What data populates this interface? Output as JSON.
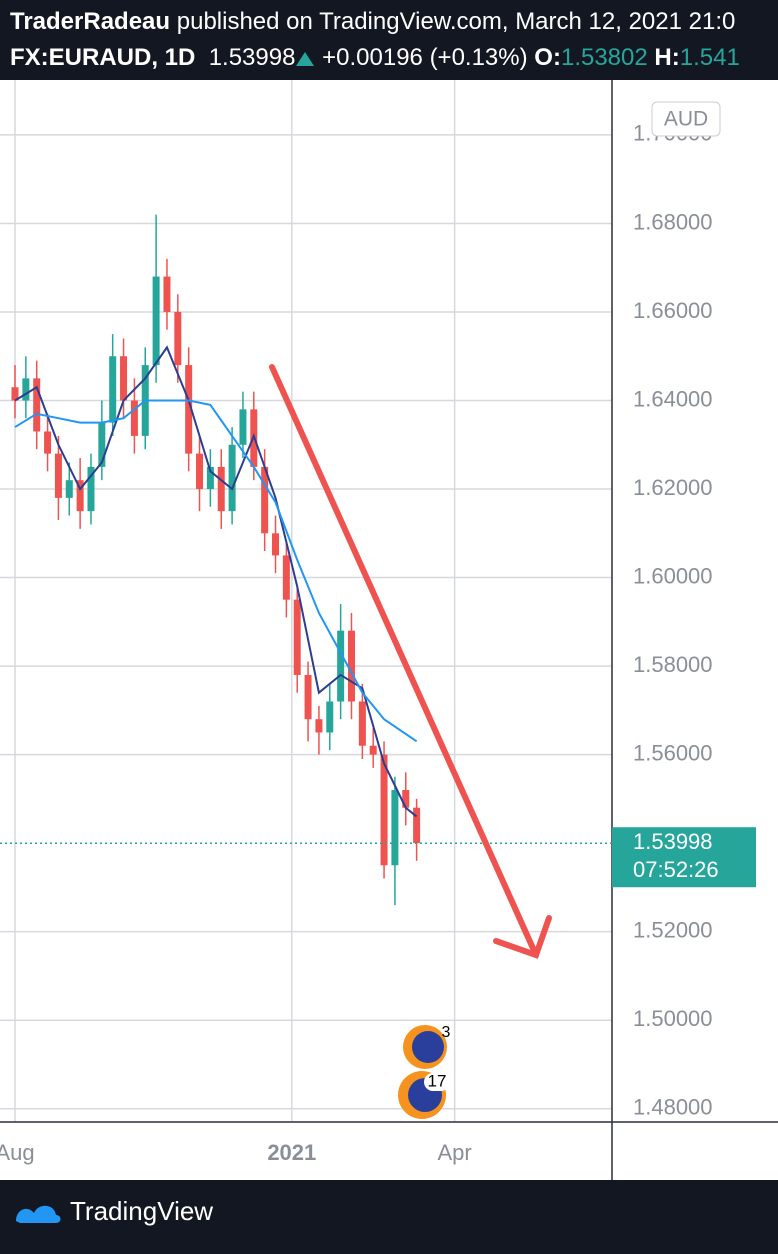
{
  "header": {
    "author": "TraderRadeau",
    "published": "published on TradingView.com, March 12, 2021 21:0",
    "symbol": "FX:EURAUD, 1D",
    "price": "1.53998",
    "change": "+0.00196 (+0.13%)",
    "open_label": "O:",
    "open": "1.53802",
    "high_label": "H:",
    "high": "1.541"
  },
  "currency_button": "AUD",
  "footer": {
    "logo_text": "TradingView"
  },
  "events": [
    {
      "label": "3"
    },
    {
      "label": "17"
    }
  ],
  "chart_data": {
    "type": "candlestick",
    "up_color": "#26a69a",
    "down_color": "#ef5350",
    "xlim": [
      0,
      330
    ],
    "xticks": [
      {
        "value": 0,
        "label": "Aug"
      },
      {
        "value": 153,
        "label": "2021"
      },
      {
        "value": 243,
        "label": "Apr"
      }
    ],
    "ylim": [
      1.477,
      1.7106
    ],
    "yticks": [
      {
        "value": 1.48,
        "label": "1.48000"
      },
      {
        "value": 1.5,
        "label": "1.50000"
      },
      {
        "value": 1.52,
        "label": "1.52000"
      },
      {
        "value": 1.56,
        "label": "1.56000"
      },
      {
        "value": 1.58,
        "label": "1.58000"
      },
      {
        "value": 1.6,
        "label": "1.60000"
      },
      {
        "value": 1.62,
        "label": "1.62000"
      },
      {
        "value": 1.64,
        "label": "1.64000"
      },
      {
        "value": 1.66,
        "label": "1.66000"
      },
      {
        "value": 1.68,
        "label": "1.68000"
      },
      {
        "value": 1.7,
        "label": "1.70000"
      }
    ],
    "grid": true,
    "candles": {
      "x": [
        0,
        6,
        12,
        18,
        24,
        30,
        36,
        42,
        48,
        54,
        60,
        66,
        72,
        78,
        84,
        90,
        96,
        102,
        108,
        114,
        120,
        126,
        132,
        138,
        144,
        150,
        156,
        162,
        168,
        174,
        180,
        186,
        192,
        198,
        204,
        210,
        216,
        222
      ],
      "open": [
        1.643,
        1.64,
        1.645,
        1.633,
        1.628,
        1.618,
        1.622,
        1.615,
        1.625,
        1.635,
        1.65,
        1.64,
        1.632,
        1.648,
        1.668,
        1.66,
        1.648,
        1.628,
        1.62,
        1.625,
        1.615,
        1.63,
        1.638,
        1.625,
        1.61,
        1.605,
        1.595,
        1.578,
        1.568,
        1.565,
        1.572,
        1.588,
        1.572,
        1.562,
        1.56,
        1.535,
        1.552,
        1.548
      ],
      "high": [
        1.648,
        1.65,
        1.649,
        1.637,
        1.632,
        1.626,
        1.627,
        1.628,
        1.64,
        1.655,
        1.654,
        1.645,
        1.652,
        1.682,
        1.672,
        1.664,
        1.652,
        1.632,
        1.629,
        1.629,
        1.634,
        1.642,
        1.642,
        1.629,
        1.614,
        1.608,
        1.598,
        1.581,
        1.571,
        1.576,
        1.594,
        1.592,
        1.576,
        1.566,
        1.563,
        1.555,
        1.556,
        1.55
      ],
      "low": [
        1.636,
        1.636,
        1.629,
        1.624,
        1.613,
        1.614,
        1.611,
        1.612,
        1.622,
        1.632,
        1.636,
        1.628,
        1.629,
        1.644,
        1.656,
        1.644,
        1.624,
        1.615,
        1.616,
        1.611,
        1.612,
        1.627,
        1.622,
        1.606,
        1.601,
        1.591,
        1.574,
        1.563,
        1.56,
        1.561,
        1.568,
        1.568,
        1.559,
        1.557,
        1.532,
        1.526,
        1.544,
        1.536
      ],
      "close": [
        1.64,
        1.645,
        1.633,
        1.628,
        1.618,
        1.622,
        1.615,
        1.625,
        1.635,
        1.65,
        1.64,
        1.632,
        1.648,
        1.668,
        1.66,
        1.648,
        1.628,
        1.62,
        1.625,
        1.615,
        1.63,
        1.638,
        1.625,
        1.61,
        1.605,
        1.595,
        1.578,
        1.568,
        1.565,
        1.572,
        1.588,
        1.572,
        1.562,
        1.56,
        1.535,
        1.552,
        1.548,
        1.54
      ]
    },
    "series": [
      {
        "color": "#2c3e8f",
        "x": [
          0,
          12,
          24,
          36,
          48,
          60,
          72,
          84,
          96,
          108,
          120,
          132,
          144,
          156,
          168,
          180,
          192,
          204,
          216,
          222
        ],
        "values": [
          1.64,
          1.643,
          1.63,
          1.62,
          1.626,
          1.64,
          1.645,
          1.652,
          1.64,
          1.624,
          1.62,
          1.632,
          1.618,
          1.598,
          1.574,
          1.578,
          1.575,
          1.558,
          1.548,
          1.546
        ]
      },
      {
        "color": "#2196f3",
        "x": [
          0,
          12,
          24,
          36,
          48,
          60,
          72,
          84,
          96,
          108,
          120,
          132,
          144,
          156,
          168,
          180,
          192,
          204,
          222
        ],
        "values": [
          1.634,
          1.637,
          1.636,
          1.635,
          1.635,
          1.636,
          1.64,
          1.64,
          1.64,
          1.639,
          1.632,
          1.625,
          1.617,
          1.604,
          1.592,
          1.583,
          1.574,
          1.568,
          1.563
        ]
      }
    ],
    "last_price": {
      "value": 1.53998,
      "label": "1.53998"
    },
    "countdown": "07:52:26"
  }
}
